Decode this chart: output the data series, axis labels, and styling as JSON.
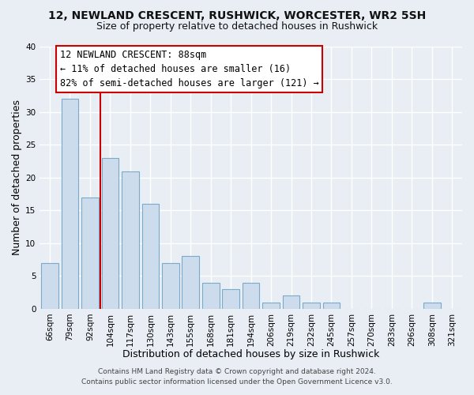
{
  "title": "12, NEWLAND CRESCENT, RUSHWICK, WORCESTER, WR2 5SH",
  "subtitle": "Size of property relative to detached houses in Rushwick",
  "xlabel": "Distribution of detached houses by size in Rushwick",
  "ylabel": "Number of detached properties",
  "bar_labels": [
    "66sqm",
    "79sqm",
    "92sqm",
    "104sqm",
    "117sqm",
    "130sqm",
    "143sqm",
    "155sqm",
    "168sqm",
    "181sqm",
    "194sqm",
    "206sqm",
    "219sqm",
    "232sqm",
    "245sqm",
    "257sqm",
    "270sqm",
    "283sqm",
    "296sqm",
    "308sqm",
    "321sqm"
  ],
  "bar_values": [
    7,
    32,
    17,
    23,
    21,
    16,
    7,
    8,
    4,
    3,
    4,
    1,
    2,
    1,
    1,
    0,
    0,
    0,
    0,
    1,
    0
  ],
  "bar_color": "#ccdcec",
  "bar_edge_color": "#7aaac8",
  "property_line_x": 2.5,
  "property_line_color": "#cc0000",
  "ylim": [
    0,
    40
  ],
  "yticks": [
    0,
    5,
    10,
    15,
    20,
    25,
    30,
    35,
    40
  ],
  "annotation_title": "12 NEWLAND CRESCENT: 88sqm",
  "annotation_line1": "← 11% of detached houses are smaller (16)",
  "annotation_line2": "82% of semi-detached houses are larger (121) →",
  "annotation_box_color": "#ffffff",
  "annotation_box_edge": "#cc0000",
  "footer_line1": "Contains HM Land Registry data © Crown copyright and database right 2024.",
  "footer_line2": "Contains public sector information licensed under the Open Government Licence v3.0.",
  "background_color": "#e8eef4",
  "grid_color": "#ffffff",
  "title_fontsize": 10,
  "subtitle_fontsize": 9,
  "axis_label_fontsize": 9,
  "tick_fontsize": 7.5,
  "annotation_fontsize": 8.5,
  "footer_fontsize": 6.5
}
